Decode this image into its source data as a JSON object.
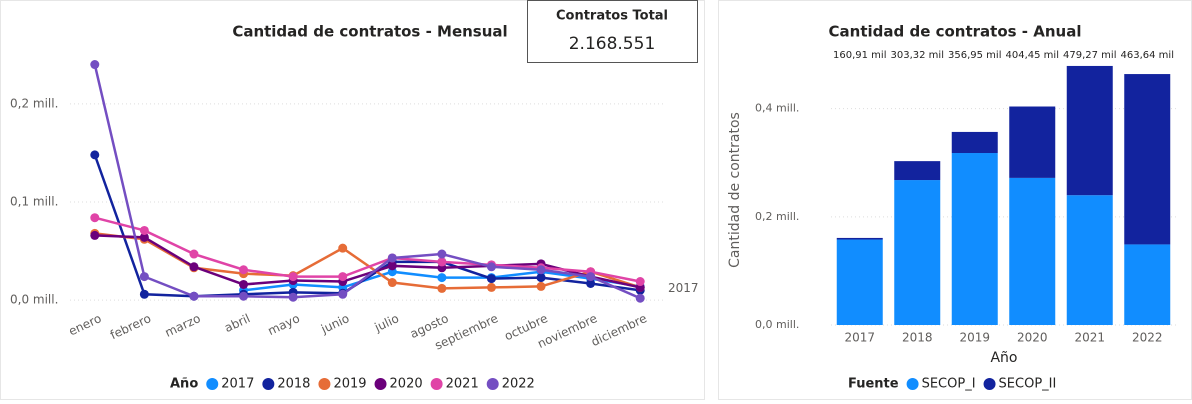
{
  "card": {
    "title": "Contratos Total",
    "value": "2.168.551"
  },
  "chart_data": [
    {
      "type": "line",
      "title": "Cantidad de contratos - Mensual",
      "legend_title": "Año",
      "categories": [
        "enero",
        "febrero",
        "marzo",
        "abril",
        "mayo",
        "junio",
        "julio",
        "agosto",
        "septiembre",
        "octubre",
        "noviembre",
        "diciembre"
      ],
      "series": [
        {
          "name": "2017",
          "color": "#118DFF",
          "values": [
            null,
            null,
            null,
            0.01,
            0.016,
            0.013,
            0.029,
            0.023,
            0.023,
            0.029,
            0.022,
            0.014
          ]
        },
        {
          "name": "2018",
          "color": "#12239E",
          "values": [
            0.148,
            0.006,
            0.004,
            0.006,
            0.008,
            0.007,
            0.039,
            0.039,
            0.022,
            0.023,
            0.017,
            0.01
          ]
        },
        {
          "name": "2019",
          "color": "#E66C37",
          "values": [
            0.068,
            0.062,
            0.033,
            0.027,
            0.025,
            0.053,
            0.018,
            0.012,
            0.013,
            0.014,
            0.029,
            0.013
          ]
        },
        {
          "name": "2020",
          "color": "#6B007B",
          "values": [
            0.066,
            0.064,
            0.034,
            0.016,
            0.02,
            0.019,
            0.035,
            0.033,
            0.035,
            0.037,
            0.024,
            0.013
          ]
        },
        {
          "name": "2021",
          "color": "#E044A7",
          "values": [
            0.084,
            0.071,
            0.047,
            0.031,
            0.024,
            0.024,
            0.043,
            0.039,
            0.036,
            0.033,
            0.029,
            0.019
          ]
        },
        {
          "name": "2022",
          "color": "#744EC2",
          "values": [
            0.24,
            0.024,
            0.004,
            0.004,
            0.003,
            0.006,
            0.043,
            0.047,
            0.034,
            0.031,
            0.024,
            0.002
          ]
        }
      ],
      "ylim": [
        -0.01,
        0.265
      ],
      "yticks": [
        {
          "value": 0,
          "label": "0,0 mill."
        },
        {
          "value": 0.1,
          "label": "0,1 mill."
        },
        {
          "value": 0.2,
          "label": "0,2 mill."
        }
      ],
      "grid": true
    },
    {
      "type": "stacked_bar",
      "title": "Cantidad de contratos - Anual",
      "legend_title": "Fuente",
      "x_label": "Año",
      "y_label": "Cantidad de contratos",
      "categories": [
        "2017",
        "2018",
        "2019",
        "2020",
        "2021",
        "2022"
      ],
      "series": [
        {
          "name": "SECOP_I",
          "color": "#118DFF",
          "values": [
            0.158,
            0.268,
            0.318,
            0.272,
            0.24,
            0.149
          ]
        },
        {
          "name": "SECOP_II",
          "color": "#12239E",
          "values": [
            0.003,
            0.035,
            0.039,
            0.132,
            0.239,
            0.315
          ]
        }
      ],
      "totals": [
        0.16091,
        0.30332,
        0.35695,
        0.40445,
        0.47927,
        0.46364
      ],
      "total_labels": [
        "160,91 mil",
        "303,32 mil",
        "356,95 mil",
        "404,45 mil",
        "479,27 mil",
        "463,64 mil"
      ],
      "ylim": [
        0,
        0.49
      ],
      "yticks": [
        {
          "value": 0,
          "label": "0,0 mill."
        },
        {
          "value": 0.2,
          "label": "0,2 mill."
        },
        {
          "value": 0.4,
          "label": "0,4 mill."
        }
      ],
      "grid": true
    }
  ]
}
